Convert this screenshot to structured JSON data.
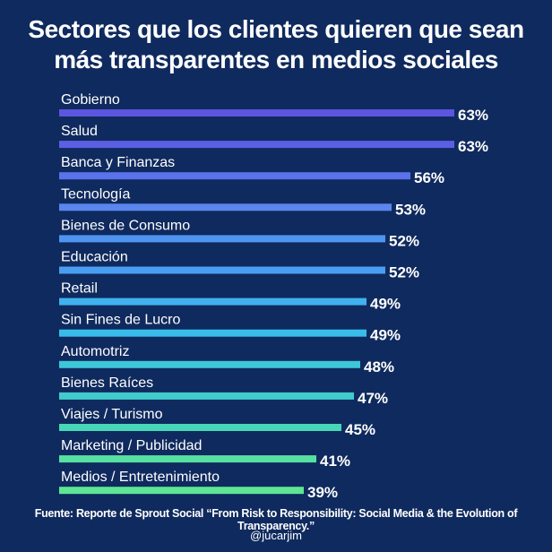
{
  "title_line1": "Sectores que los clientes quieren que sean",
  "title_line2": "más transparentes en medios sociales",
  "source": "Fuente: Reporte de Sprout Social “From Risk to Responsibility: Social Media & the Evolution of Transparency.”",
  "handle": "@jucarjim",
  "chart_data": {
    "type": "bar",
    "orientation": "horizontal",
    "categories": [
      "Gobierno",
      "Salud",
      "Banca y Finanzas",
      "Tecnología",
      "Bienes de Consumo",
      "Educación",
      "Retail",
      "Sin Fines de Lucro",
      "Automotriz",
      "Bienes Raíces",
      "Viajes / Turismo",
      "Marketing / Publicidad",
      "Medios / Entretenimiento"
    ],
    "values": [
      63,
      63,
      56,
      53,
      52,
      52,
      49,
      49,
      48,
      47,
      45,
      41,
      39
    ],
    "value_labels": [
      "63%",
      "63%",
      "56%",
      "53%",
      "52%",
      "52%",
      "49%",
      "49%",
      "48%",
      "47%",
      "45%",
      "41%",
      "39%"
    ],
    "bar_colors": [
      "#5b55e0",
      "#5b5fe4",
      "#5a72ea",
      "#5a86ee",
      "#4f95f0",
      "#4a9ef1",
      "#3fb2ef",
      "#39bcea",
      "#3ec6d9",
      "#42cbcc",
      "#48d6b8",
      "#56e0a2",
      "#5fe694"
    ],
    "title": "Sectores que los clientes quieren que sean más transparentes en medios sociales",
    "xlabel": "",
    "ylabel": "",
    "legend": "none",
    "grid": false
  }
}
